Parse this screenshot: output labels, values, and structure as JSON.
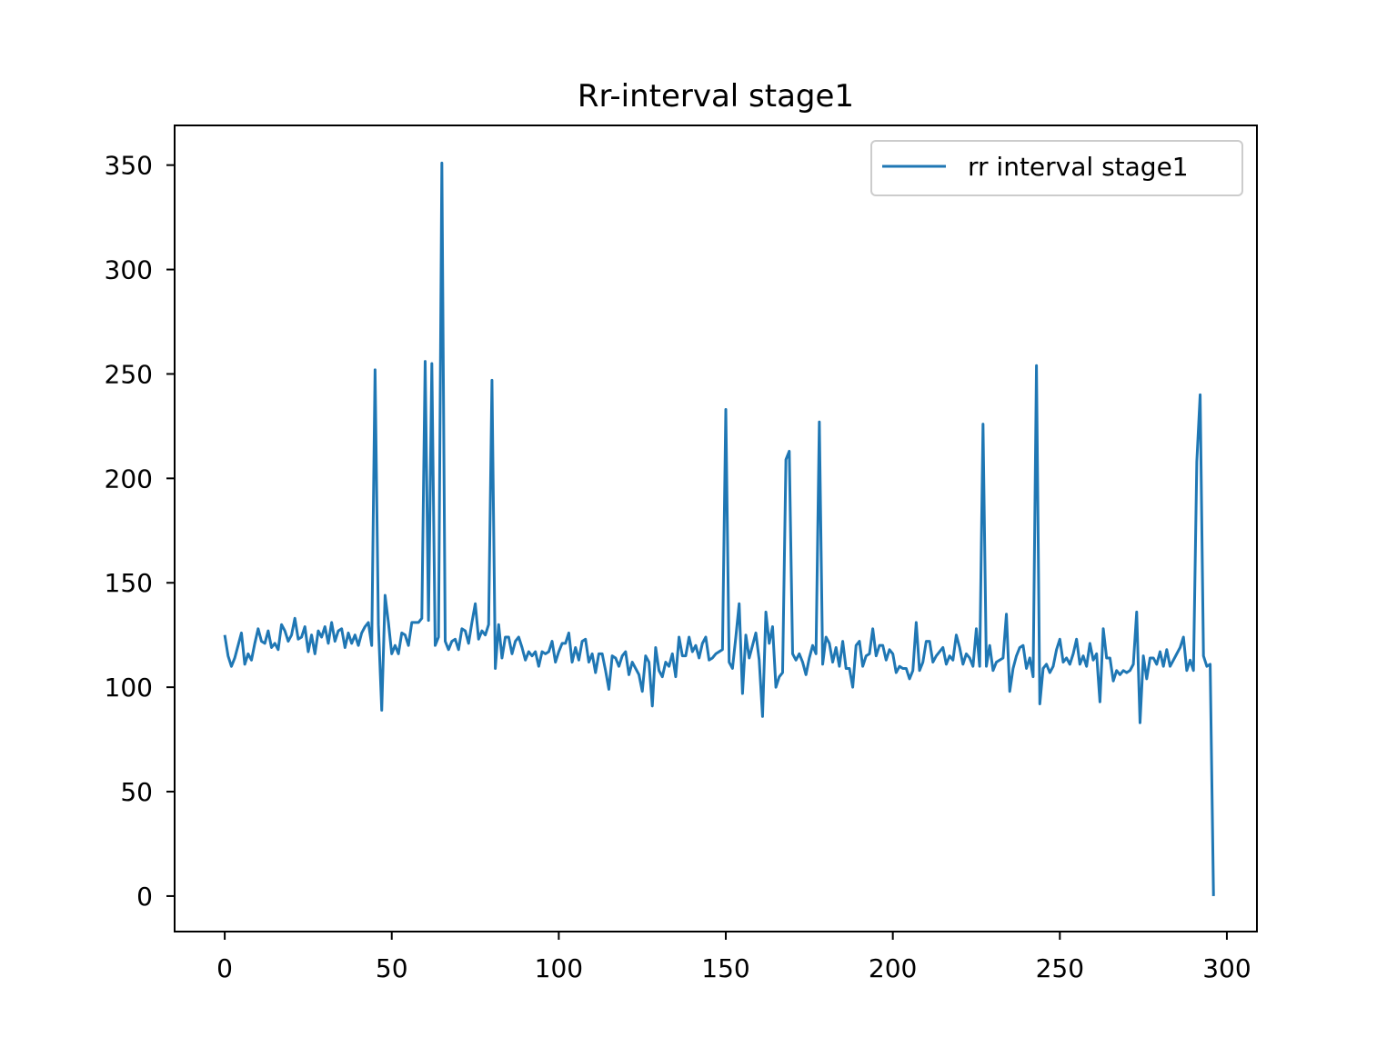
{
  "chart_data": {
    "type": "line",
    "title": "Rr-interval stage1",
    "xlabel": "",
    "ylabel": "",
    "xlim": [
      -15,
      309
    ],
    "ylim": [
      -17,
      369
    ],
    "x_ticks": [
      0,
      50,
      100,
      150,
      200,
      250,
      300
    ],
    "y_ticks": [
      0,
      50,
      100,
      150,
      200,
      250,
      300,
      350
    ],
    "grid": false,
    "legend_position": "upper right",
    "colors": {
      "series": "#1f77b4",
      "axes": "#000000",
      "legend_border": "#cccccc"
    },
    "series": [
      {
        "name": "rr interval stage1",
        "x_start": 0,
        "x_step": 1,
        "values": [
          125,
          115,
          110,
          114,
          120,
          126,
          111,
          116,
          113,
          121,
          128,
          122,
          121,
          127,
          119,
          121,
          118,
          130,
          127,
          122,
          125,
          133,
          123,
          124,
          129,
          117,
          125,
          116,
          127,
          124,
          129,
          121,
          131,
          122,
          127,
          128,
          119,
          126,
          121,
          125,
          120,
          126,
          129,
          131,
          120,
          252,
          130,
          89,
          144,
          131,
          116,
          120,
          116,
          126,
          125,
          120,
          131,
          131,
          131,
          133,
          256,
          132,
          255,
          120,
          124,
          351,
          122,
          118,
          122,
          123,
          118,
          128,
          127,
          121,
          131,
          140,
          123,
          127,
          125,
          130,
          247,
          109,
          130,
          114,
          124,
          124,
          116,
          122,
          124,
          119,
          113,
          117,
          115,
          117,
          110,
          117,
          116,
          117,
          122,
          112,
          117,
          121,
          121,
          126,
          112,
          119,
          113,
          122,
          123,
          112,
          116,
          107,
          116,
          116,
          108,
          99,
          115,
          114,
          110,
          115,
          117,
          106,
          112,
          109,
          106,
          98,
          115,
          112,
          91,
          119,
          108,
          105,
          112,
          110,
          116,
          105,
          124,
          115,
          115,
          124,
          117,
          120,
          114,
          121,
          124,
          113,
          114,
          116,
          117,
          118,
          233,
          112,
          109,
          124,
          140,
          97,
          125,
          114,
          120,
          126,
          113,
          86,
          136,
          121,
          129,
          100,
          105,
          107,
          209,
          213,
          116,
          113,
          116,
          112,
          106,
          114,
          120,
          116,
          227,
          111,
          124,
          121,
          112,
          119,
          110,
          122,
          109,
          109,
          100,
          120,
          122,
          110,
          115,
          116,
          128,
          115,
          120,
          120,
          113,
          118,
          116,
          107,
          110,
          109,
          109,
          104,
          108,
          131,
          108,
          112,
          122,
          122,
          112,
          115,
          117,
          119,
          111,
          115,
          113,
          125,
          119,
          111,
          116,
          114,
          110,
          128,
          110,
          226,
          110,
          120,
          108,
          112,
          113,
          114,
          135,
          98,
          109,
          115,
          119,
          120,
          109,
          114,
          105,
          254,
          92,
          109,
          111,
          107,
          110,
          118,
          123,
          112,
          114,
          111,
          116,
          123,
          111,
          115,
          110,
          121,
          113,
          116,
          93,
          128,
          114,
          114,
          103,
          108,
          106,
          108,
          107,
          108,
          111,
          136,
          83,
          115,
          104,
          114,
          114,
          111,
          117,
          110,
          118,
          110,
          113,
          116,
          119,
          124,
          108,
          113,
          108,
          208,
          240,
          115,
          110,
          111,
          0
        ]
      }
    ]
  }
}
